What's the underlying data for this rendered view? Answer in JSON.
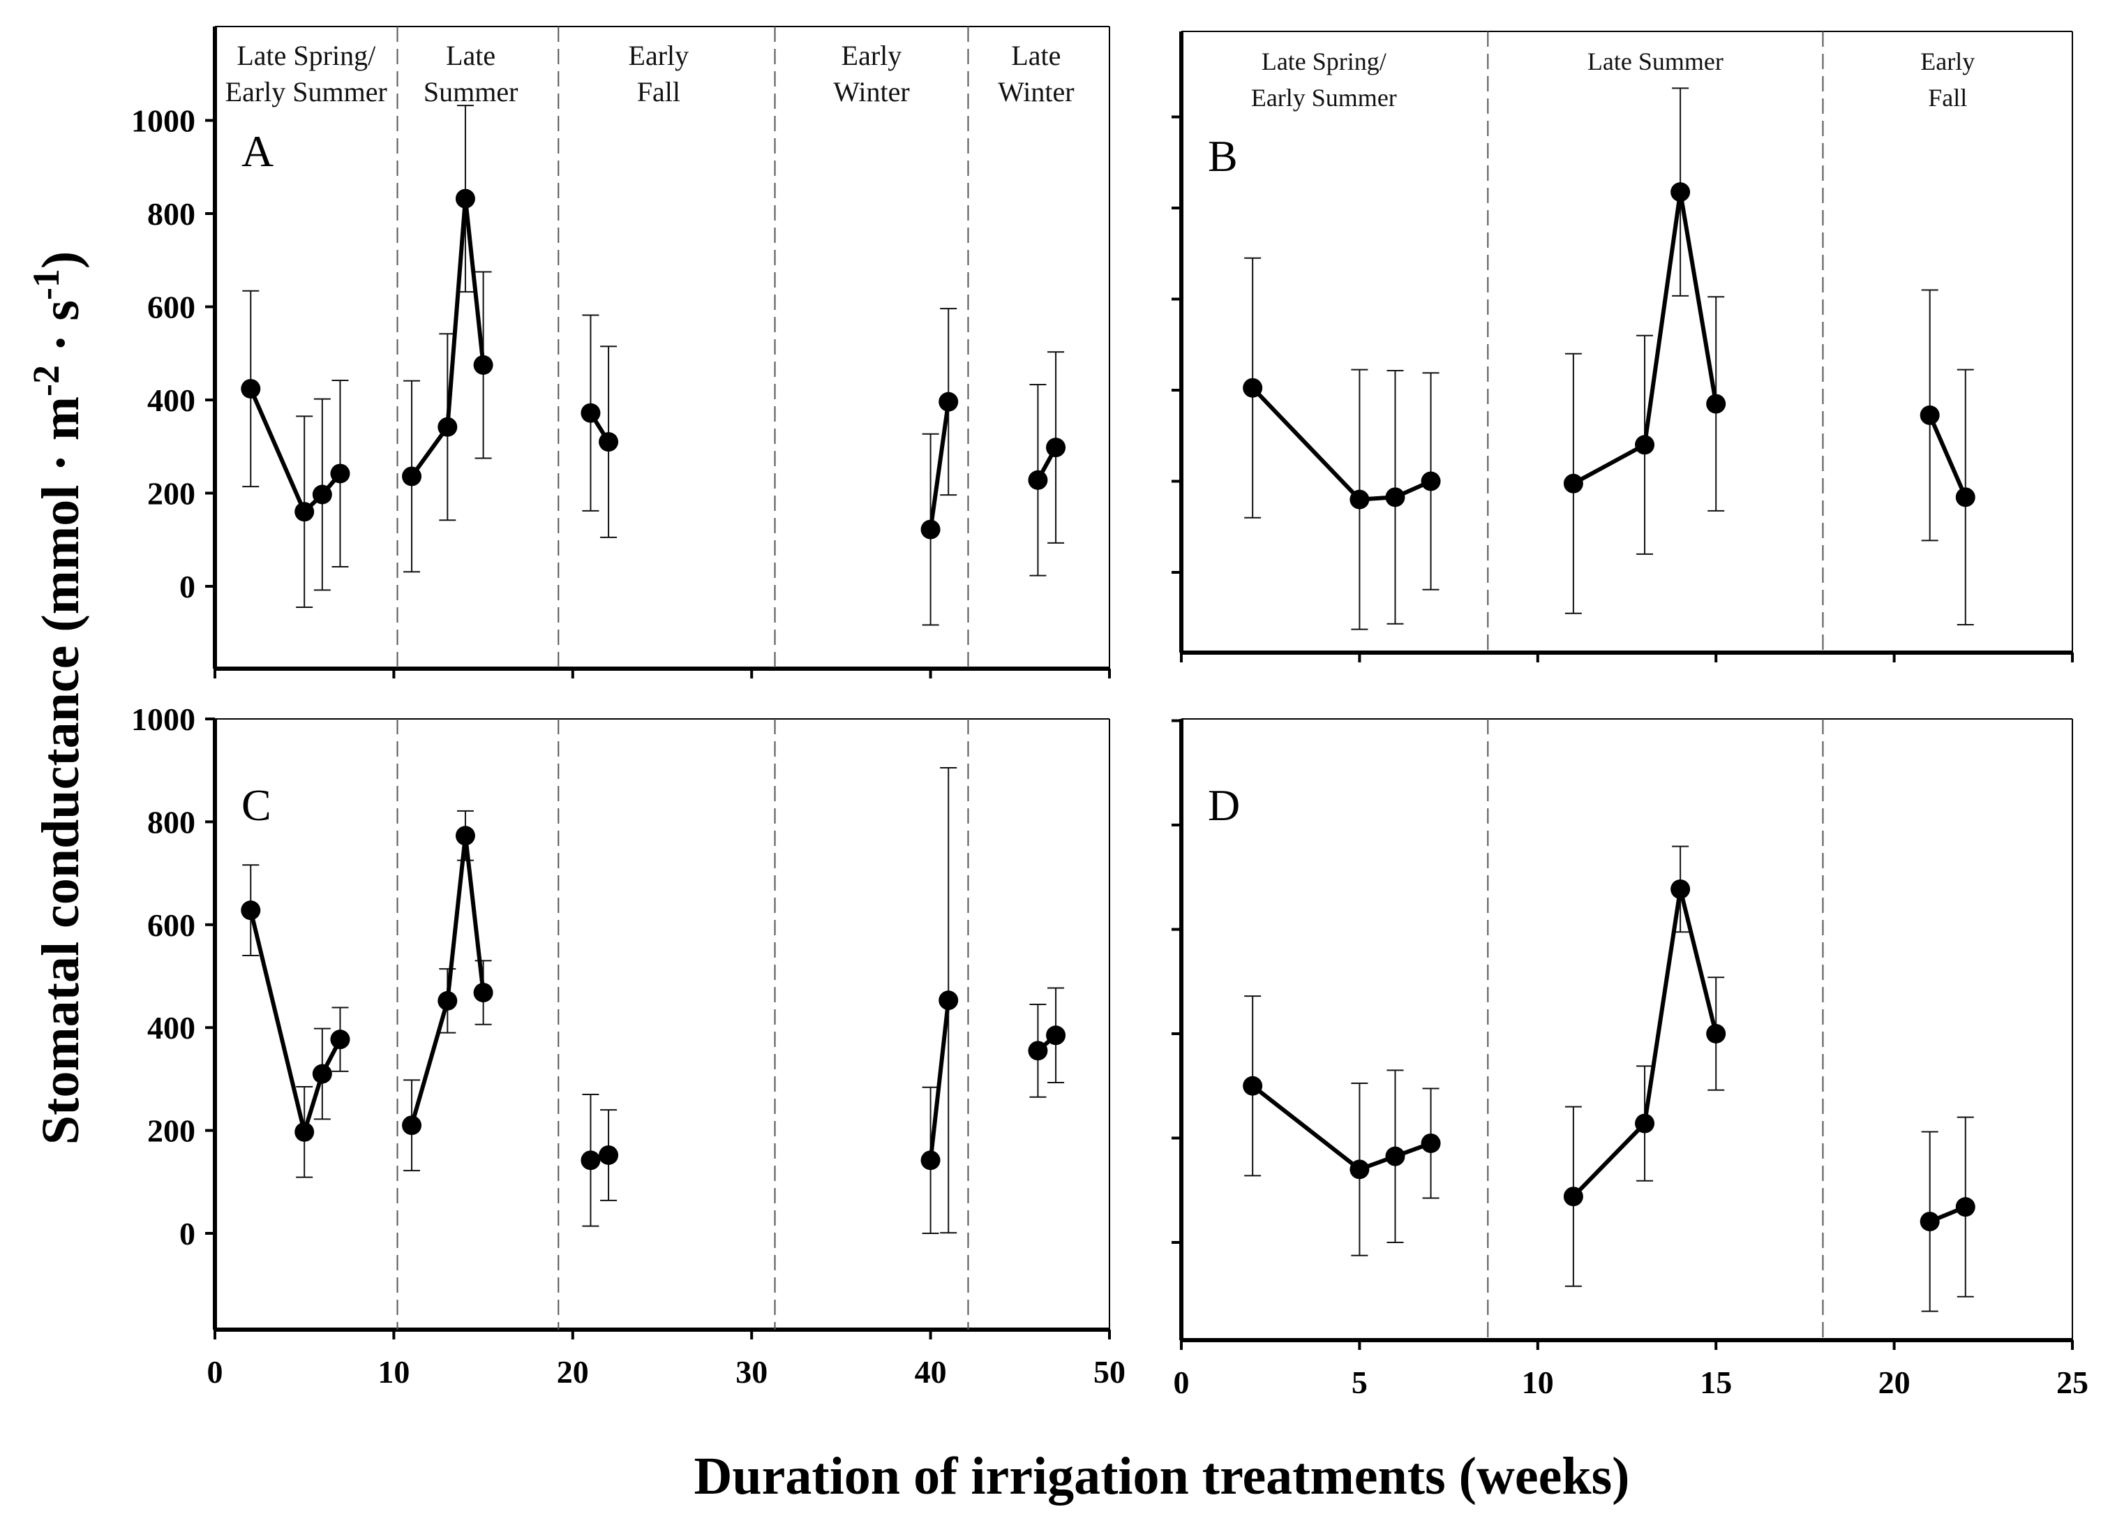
{
  "chart_data": {
    "type": "line",
    "title": "",
    "ylabel": "Stomatal conductance (mmol · m-2 · s-1)",
    "ylabel_parts": {
      "main": "Stomatal conductance (mmol · m",
      "sup1": "-2",
      "mid": " · s",
      "sup2": "-1",
      "end": ")"
    },
    "xlabel": "Duration of irrigation treatments (weeks)",
    "panels": [
      {
        "id": "A",
        "label": "A",
        "xlim": [
          0,
          50
        ],
        "ylim": [
          -180,
          1200
        ],
        "xticks": [
          0,
          10,
          20,
          30,
          40,
          50
        ],
        "yticks": [
          0,
          200,
          400,
          600,
          800,
          1000
        ],
        "show_x_tick_labels": false,
        "show_y_tick_labels": true,
        "dividers": [
          10.2,
          19.2,
          31.3,
          42.1
        ],
        "seasons": [
          {
            "lines": [
              "Late Spring/",
              "Early Summer"
            ],
            "x": 5.1
          },
          {
            "lines": [
              "Late",
              "Summer"
            ],
            "x": 14.3
          },
          {
            "lines": [
              "Early",
              "Fall"
            ],
            "x": 24.8
          },
          {
            "lines": [
              "Early",
              "Winter"
            ],
            "x": 36.7
          },
          {
            "lines": [
              "Late",
              "Winter"
            ],
            "x": 45.9
          }
        ],
        "segments": [
          {
            "x": [
              2,
              5,
              6,
              7
            ],
            "y": [
              424,
              160,
              197,
              242
            ],
            "err": [
              210,
              205,
              205,
              200
            ]
          },
          {
            "x": [
              11,
              13,
              14,
              15
            ],
            "y": [
              236,
              342,
              832,
              475
            ],
            "err": [
              205,
              200,
              200,
              200
            ]
          },
          {
            "x": [
              21,
              22
            ],
            "y": [
              372,
              310
            ],
            "err": [
              210,
              205
            ]
          },
          {
            "x": [
              40,
              41
            ],
            "y": [
              122,
              396
            ],
            "err": [
              205,
              200
            ]
          },
          {
            "x": [
              46,
              47
            ],
            "y": [
              228,
              298
            ],
            "err": [
              205,
              205
            ]
          }
        ]
      },
      {
        "id": "B",
        "label": "B",
        "xlim": [
          0,
          25
        ],
        "ylim": [
          -180,
          1200
        ],
        "xticks": [
          0,
          5,
          10,
          15,
          20,
          25
        ],
        "yticks": [
          0,
          200,
          400,
          600,
          800,
          1000
        ],
        "show_x_tick_labels": false,
        "show_y_tick_labels": false,
        "dividers": [
          8.6,
          18.0
        ],
        "seasons": [
          {
            "lines": [
              "Late Spring/",
              "Early Summer"
            ],
            "x": 4.0
          },
          {
            "lines": [
              "Late Summer"
            ],
            "x": 13.3
          },
          {
            "lines": [
              "Early",
              "Fall"
            ],
            "x": 21.5
          }
        ],
        "segments": [
          {
            "x": [
              2,
              5,
              6,
              7
            ],
            "y": [
              405,
              160,
              165,
              200
            ],
            "err": [
              285,
              285,
              278,
              238
            ]
          },
          {
            "x": [
              11,
              13,
              14,
              15
            ],
            "y": [
              195,
              280,
              835,
              370
            ],
            "err": [
              285,
              240,
              228,
              235
            ]
          },
          {
            "x": [
              21,
              22
            ],
            "y": [
              345,
              165
            ],
            "err": [
              275,
              280
            ]
          }
        ]
      },
      {
        "id": "C",
        "label": "C",
        "xlim": [
          0,
          50
        ],
        "ylim": [
          -180,
          1000
        ],
        "xticks": [
          0,
          10,
          20,
          30,
          40,
          50
        ],
        "yticks": [
          0,
          200,
          400,
          600,
          800,
          1000
        ],
        "show_x_tick_labels": true,
        "show_y_tick_labels": true,
        "dividers": [
          10.2,
          19.2,
          31.3,
          42.1
        ],
        "seasons": [],
        "segments": [
          {
            "x": [
              2,
              5,
              6,
              7
            ],
            "y": [
              628,
              197,
              310,
              377
            ],
            "err": [
              88,
              88,
              88,
              62
            ]
          },
          {
            "x": [
              11,
              13,
              14,
              15
            ],
            "y": [
              210,
              452,
              773,
              468
            ],
            "err": [
              88,
              62,
              48,
              62
            ]
          },
          {
            "x": [
              21,
              22
            ],
            "y": [
              142,
              152
            ],
            "err": [
              128,
              88
            ]
          },
          {
            "x": [
              40,
              41
            ],
            "y": [
              142,
              453
            ],
            "err": [
              142,
              452
            ]
          },
          {
            "x": [
              46,
              47
            ],
            "y": [
              355,
              385
            ],
            "err": [
              90,
              92
            ]
          }
        ]
      },
      {
        "id": "D",
        "label": "D",
        "xlim": [
          0,
          25
        ],
        "ylim": [
          -180,
          1000
        ],
        "xticks": [
          0,
          5,
          10,
          15,
          20,
          25
        ],
        "yticks": [
          0,
          200,
          400,
          600,
          800,
          1000
        ],
        "show_x_tick_labels": true,
        "show_y_tick_labels": false,
        "dividers": [
          8.6,
          18.0
        ],
        "seasons": [],
        "segments": [
          {
            "x": [
              2,
              5,
              6,
              7
            ],
            "y": [
              300,
              140,
              165,
              190
            ],
            "err": [
              172,
              165,
              165,
              105
            ]
          },
          {
            "x": [
              11,
              13,
              14,
              15
            ],
            "y": [
              88,
              228,
              677,
              400
            ],
            "err": [
              172,
              110,
              82,
              108
            ]
          },
          {
            "x": [
              21,
              22
            ],
            "y": [
              40,
              68
            ],
            "err": [
              172,
              172
            ]
          }
        ]
      }
    ]
  }
}
